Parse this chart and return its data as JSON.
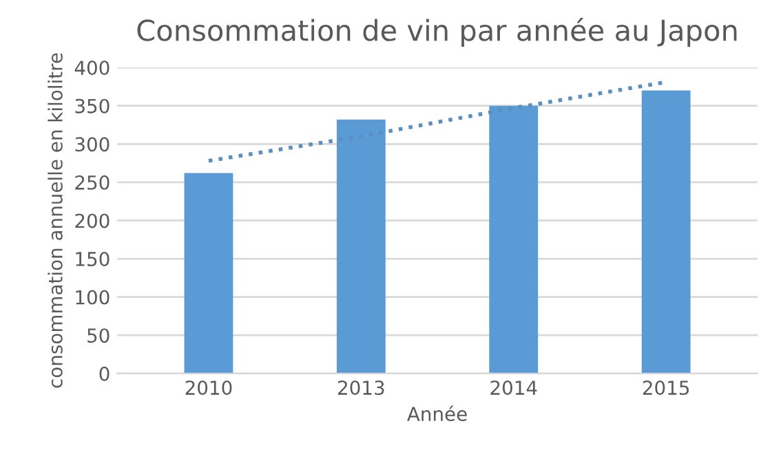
{
  "chart_data": {
    "type": "bar",
    "title": "Consommation de vin par année au Japon",
    "xlabel": "Année",
    "ylabel": "consommation annuelle en kilolitre",
    "categories": [
      "2010",
      "2013",
      "2014",
      "2015"
    ],
    "series": [
      {
        "color": "#5b9bd5",
        "values": [
          262,
          332,
          350,
          370
        ]
      },
      {
        "type": "line",
        "color": "#5b8fc0",
        "line_style": "dotted",
        "values": [
          278,
          310,
          347,
          381
        ]
      }
    ],
    "ylim": [
      0,
      400
    ],
    "yticks": [
      0,
      50,
      100,
      150,
      200,
      250,
      300,
      350,
      400
    ],
    "grid": "y",
    "legend": false
  }
}
